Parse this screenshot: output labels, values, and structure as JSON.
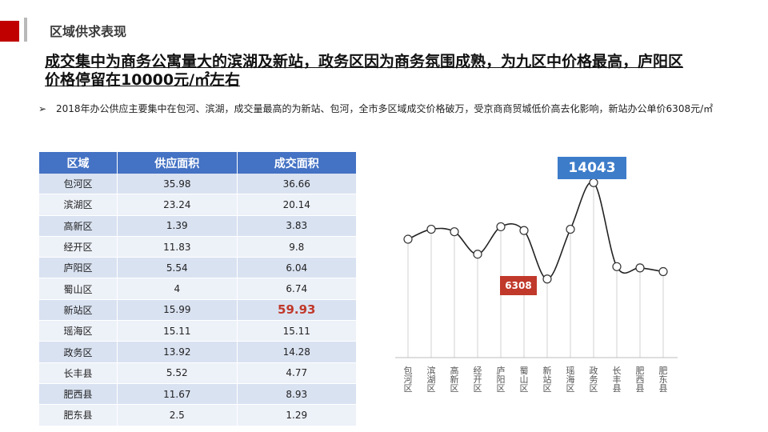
{
  "theme": {
    "accent": "#c00000",
    "header_blue": "#4472c4",
    "callout_blue": "#3d7cc9",
    "callout_red": "#c0392b"
  },
  "header": {
    "section_title": "区域供求表现"
  },
  "headline": {
    "line1": "成交集中为商务公寓量大的滨湖及新站，政务区因为商务氛围成熟，为九区中价格最高，庐阳区",
    "line2": "价格停留在10000元/㎡左右"
  },
  "bullet": {
    "mark": "➢",
    "text": "2018年办公供应主要集中在包河、滨湖，成交量最高的为新站、包河，全市多区域成交价格破万，受京商商贸城低价高去化影响，新站办公单价6308元/㎡"
  },
  "table": {
    "columns": [
      "区域",
      "供应面积",
      "成交面积"
    ],
    "rows": [
      [
        "包河区",
        "35.98",
        "36.66"
      ],
      [
        "滨湖区",
        "23.24",
        "20.14"
      ],
      [
        "高新区",
        "1.39",
        "3.83"
      ],
      [
        "经开区",
        "11.83",
        "9.8"
      ],
      [
        "庐阳区",
        "5.54",
        "6.04"
      ],
      [
        "蜀山区",
        "4",
        "6.74"
      ],
      [
        "新站区",
        "15.99",
        "59.93"
      ],
      [
        "瑶海区",
        "15.11",
        "15.11"
      ],
      [
        "政务区",
        "13.92",
        "14.28"
      ],
      [
        "长丰县",
        "5.52",
        "4.77"
      ],
      [
        "肥西县",
        "11.67",
        "8.93"
      ],
      [
        "肥东县",
        "2.5",
        "1.29"
      ]
    ],
    "highlight_cell": {
      "row": 6,
      "col": 2,
      "color": "#c0392b"
    }
  },
  "chart_data": {
    "type": "line",
    "categories": [
      "包河区",
      "滨湖区",
      "高新区",
      "经开区",
      "庐阳区",
      "蜀山区",
      "新站区",
      "瑶海区",
      "政务区",
      "长丰县",
      "肥西县",
      "肥东县"
    ],
    "values": [
      9500,
      10300,
      10100,
      8300,
      10500,
      10200,
      6308,
      10300,
      14043,
      7300,
      7200,
      6900
    ],
    "ylim": [
      0,
      16500
    ],
    "labels": [
      {
        "index": 8,
        "text": "14043"
      },
      {
        "index": 6,
        "text": "6308"
      }
    ],
    "grid": false,
    "line_color": "#222222",
    "drop_line_color": "#d0d0d0"
  }
}
